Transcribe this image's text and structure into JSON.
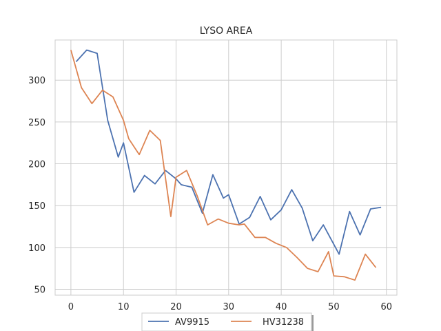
{
  "chart_data": {
    "type": "line",
    "title": "LYSO AREA",
    "xlabel": "",
    "ylabel": "",
    "xlim": [
      -3,
      62
    ],
    "ylim": [
      43,
      348
    ],
    "xticks": [
      0,
      10,
      20,
      30,
      40,
      50,
      60
    ],
    "yticks": [
      50,
      100,
      150,
      200,
      250,
      300
    ],
    "grid": true,
    "legend_position": "bottom-center",
    "series": [
      {
        "name": "AV9915",
        "color": "#4c72b0",
        "x": [
          1,
          3,
          5,
          7,
          9,
          10,
          12,
          14,
          16,
          18,
          20,
          21,
          23,
          25,
          27,
          29,
          30,
          32,
          34,
          36,
          38,
          40,
          42,
          44,
          46,
          48,
          51,
          53,
          55,
          57,
          59
        ],
        "y": [
          322,
          336,
          332,
          252,
          208,
          225,
          166,
          186,
          176,
          192,
          182,
          175,
          172,
          141,
          187,
          159,
          163,
          128,
          136,
          161,
          133,
          145,
          169,
          147,
          108,
          127,
          92,
          143,
          115,
          146,
          148
        ]
      },
      {
        "name": "HV31238",
        "color": "#dd8452",
        "x": [
          0,
          2,
          4,
          6,
          8,
          10,
          11,
          13,
          15,
          17,
          19,
          20,
          22,
          24,
          26,
          28,
          30,
          32,
          33,
          35,
          37,
          39,
          41,
          43,
          45,
          47,
          49,
          50,
          52,
          54,
          56,
          58
        ],
        "y": [
          336,
          291,
          272,
          288,
          280,
          252,
          230,
          211,
          240,
          228,
          137,
          184,
          192,
          162,
          127,
          134,
          129,
          127,
          128,
          112,
          112,
          105,
          100,
          88,
          75,
          71,
          95,
          66,
          65,
          61,
          92,
          76
        ]
      }
    ]
  }
}
